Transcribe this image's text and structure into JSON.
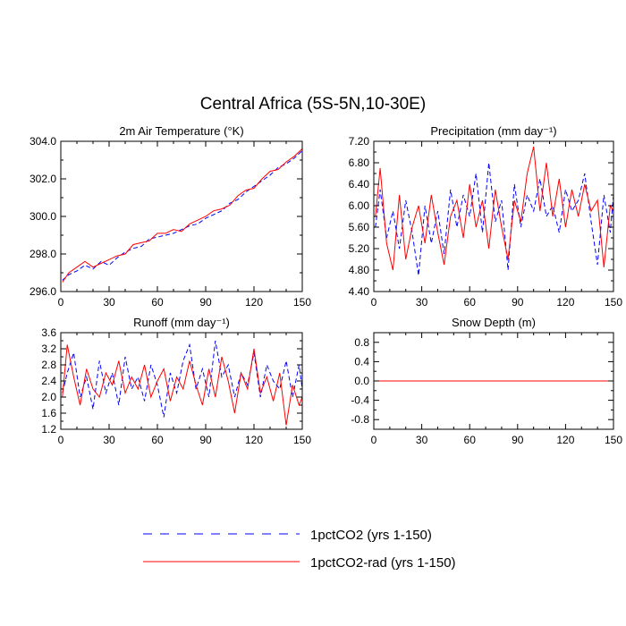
{
  "figure": {
    "title": "Central Africa (5S-5N,10-30E)"
  },
  "legend": {
    "placement": "bottom-center",
    "items": [
      {
        "label": "1pctCO2 (yrs 1-150)",
        "color": "#0000ff",
        "dash": "dashed"
      },
      {
        "label": "1pctCO2-rad (yrs 1-150)",
        "color": "#ff0000",
        "dash": "solid"
      }
    ]
  },
  "chart_data": [
    {
      "type": "line",
      "title": "2m Air Temperature (°K)",
      "xlabel": "",
      "ylabel": "",
      "xlim": [
        0,
        150
      ],
      "ylim": [
        296.0,
        304.0
      ],
      "xticks": [
        0,
        30,
        60,
        90,
        120,
        150
      ],
      "xtick_labels": [
        "0",
        "30",
        "60",
        "90",
        "120",
        "150"
      ],
      "yticks": [
        296.0,
        298.0,
        300.0,
        302.0,
        304.0
      ],
      "ytick_labels": [
        "296.0",
        "298.0",
        "300.0",
        "302.0",
        "304.0"
      ],
      "grid": false,
      "series": [
        {
          "name": "1pctCO2 (yrs 1-150)",
          "color": "#0000ff",
          "dash": "dashed",
          "x": [
            1,
            5,
            10,
            15,
            20,
            25,
            30,
            35,
            40,
            45,
            50,
            55,
            60,
            65,
            70,
            75,
            80,
            85,
            90,
            95,
            100,
            105,
            110,
            115,
            120,
            125,
            130,
            135,
            140,
            145,
            150
          ],
          "values": [
            296.6,
            296.9,
            297.1,
            297.4,
            297.2,
            297.6,
            297.4,
            297.8,
            298.1,
            298.3,
            298.4,
            298.8,
            298.9,
            299.0,
            299.1,
            299.3,
            299.5,
            299.6,
            299.9,
            300.1,
            300.3,
            300.7,
            300.9,
            301.3,
            301.6,
            301.9,
            302.2,
            302.6,
            302.8,
            303.1,
            303.5
          ]
        },
        {
          "name": "1pctCO2-rad (yrs 1-150)",
          "color": "#ff0000",
          "dash": "solid",
          "x": [
            1,
            5,
            10,
            15,
            20,
            25,
            30,
            35,
            40,
            45,
            50,
            55,
            60,
            65,
            70,
            75,
            80,
            85,
            90,
            95,
            100,
            105,
            110,
            115,
            120,
            125,
            130,
            135,
            140,
            145,
            150
          ],
          "values": [
            296.5,
            297.0,
            297.3,
            297.6,
            297.3,
            297.5,
            297.7,
            297.9,
            298.0,
            298.5,
            298.6,
            298.7,
            299.1,
            299.1,
            299.3,
            299.2,
            299.6,
            299.8,
            300.0,
            300.3,
            300.4,
            300.6,
            301.1,
            301.4,
            301.5,
            302.0,
            302.4,
            302.5,
            302.9,
            303.2,
            303.6
          ]
        }
      ]
    },
    {
      "type": "line",
      "title": "Precipitation (mm day⁻¹)",
      "xlabel": "",
      "ylabel": "",
      "xlim": [
        0,
        150
      ],
      "ylim": [
        4.4,
        7.2
      ],
      "xticks": [
        0,
        30,
        60,
        90,
        120,
        150
      ],
      "xtick_labels": [
        "0",
        "30",
        "60",
        "90",
        "120",
        "150"
      ],
      "yticks": [
        4.4,
        4.8,
        5.2,
        5.6,
        6.0,
        6.4,
        6.8,
        7.2
      ],
      "ytick_labels": [
        "4.40",
        "4.80",
        "5.20",
        "5.60",
        "6.00",
        "6.40",
        "6.80",
        "7.20"
      ],
      "grid": false,
      "series": [
        {
          "name": "1pctCO2 (yrs 1-150)",
          "color": "#0000ff",
          "dash": "dashed",
          "x": [
            1,
            4,
            8,
            12,
            16,
            20,
            24,
            28,
            32,
            36,
            40,
            44,
            48,
            52,
            56,
            60,
            64,
            68,
            72,
            76,
            80,
            84,
            88,
            92,
            96,
            100,
            104,
            108,
            112,
            116,
            120,
            124,
            128,
            132,
            136,
            140,
            144,
            148,
            150
          ],
          "values": [
            5.6,
            6.3,
            5.4,
            5.9,
            5.2,
            6.1,
            5.5,
            4.7,
            6.0,
            5.3,
            5.9,
            5.1,
            6.3,
            5.6,
            6.2,
            5.8,
            6.6,
            5.5,
            6.8,
            5.7,
            6.1,
            4.8,
            6.4,
            5.6,
            6.2,
            5.9,
            6.5,
            5.8,
            6.0,
            5.5,
            6.3,
            5.9,
            6.1,
            6.6,
            5.7,
            4.9,
            6.2,
            5.5,
            6.2
          ]
        },
        {
          "name": "1pctCO2-rad (yrs 1-150)",
          "color": "#ff0000",
          "dash": "solid",
          "x": [
            1,
            4,
            8,
            12,
            16,
            20,
            24,
            28,
            32,
            36,
            40,
            44,
            48,
            52,
            56,
            60,
            64,
            68,
            72,
            76,
            80,
            84,
            88,
            92,
            96,
            100,
            104,
            108,
            112,
            116,
            120,
            124,
            128,
            132,
            136,
            140,
            144,
            148,
            150
          ],
          "values": [
            5.8,
            6.7,
            5.3,
            4.8,
            6.2,
            5.0,
            5.6,
            6.0,
            5.3,
            6.2,
            5.5,
            4.9,
            5.8,
            6.1,
            5.4,
            6.4,
            5.6,
            6.1,
            5.2,
            6.3,
            5.6,
            5.0,
            6.1,
            5.7,
            6.6,
            7.1,
            5.9,
            6.8,
            5.8,
            6.5,
            5.6,
            6.3,
            5.8,
            6.4,
            5.9,
            6.1,
            4.85,
            6.0,
            5.9
          ]
        }
      ]
    },
    {
      "type": "line",
      "title": "Runoff (mm day⁻¹)",
      "xlabel": "",
      "ylabel": "",
      "xlim": [
        0,
        150
      ],
      "ylim": [
        1.2,
        3.6
      ],
      "xticks": [
        0,
        30,
        60,
        90,
        120,
        150
      ],
      "xtick_labels": [
        "0",
        "30",
        "60",
        "90",
        "120",
        "150"
      ],
      "yticks": [
        1.2,
        1.6,
        2.0,
        2.4,
        2.8,
        3.2,
        3.6
      ],
      "ytick_labels": [
        "1.2",
        "1.6",
        "2.0",
        "2.4",
        "2.8",
        "3.2",
        "3.6"
      ],
      "grid": false,
      "series": [
        {
          "name": "1pctCO2 (yrs 1-150)",
          "color": "#0000ff",
          "dash": "dashed",
          "x": [
            1,
            4,
            8,
            12,
            16,
            20,
            24,
            28,
            32,
            36,
            40,
            44,
            48,
            52,
            56,
            60,
            64,
            68,
            72,
            76,
            80,
            84,
            88,
            92,
            96,
            100,
            104,
            108,
            112,
            116,
            120,
            124,
            128,
            132,
            136,
            140,
            144,
            148,
            150
          ],
          "values": [
            2.1,
            2.6,
            3.1,
            2.0,
            2.5,
            1.7,
            2.9,
            2.1,
            2.6,
            1.8,
            3.0,
            2.2,
            2.5,
            1.9,
            2.8,
            2.3,
            1.5,
            2.6,
            2.1,
            2.9,
            3.3,
            2.2,
            2.7,
            2.0,
            3.4,
            2.5,
            2.8,
            2.0,
            2.6,
            2.3,
            3.1,
            2.0,
            2.8,
            2.4,
            2.2,
            2.9,
            2.0,
            2.8,
            2.2
          ]
        },
        {
          "name": "1pctCO2-rad (yrs 1-150)",
          "color": "#ff0000",
          "dash": "solid",
          "x": [
            1,
            4,
            8,
            12,
            16,
            20,
            24,
            28,
            32,
            36,
            40,
            44,
            48,
            52,
            56,
            60,
            64,
            68,
            72,
            76,
            80,
            84,
            88,
            92,
            96,
            100,
            104,
            108,
            112,
            116,
            120,
            124,
            128,
            132,
            136,
            140,
            144,
            148,
            150
          ],
          "values": [
            2.0,
            3.3,
            2.5,
            1.8,
            2.7,
            2.2,
            2.0,
            2.6,
            2.3,
            2.9,
            2.1,
            2.5,
            2.2,
            2.8,
            2.0,
            2.4,
            2.7,
            1.9,
            2.5,
            2.2,
            2.9,
            2.3,
            1.8,
            2.7,
            2.0,
            3.0,
            2.4,
            1.6,
            2.6,
            2.2,
            3.2,
            2.1,
            2.5,
            1.9,
            2.6,
            1.3,
            2.3,
            1.8,
            2.0
          ]
        }
      ]
    },
    {
      "type": "line",
      "title": "Snow Depth (m)",
      "xlabel": "",
      "ylabel": "",
      "xlim": [
        0,
        150
      ],
      "ylim": [
        -1.0,
        1.0
      ],
      "xticks": [
        0,
        30,
        60,
        90,
        120,
        150
      ],
      "xtick_labels": [
        "0",
        "30",
        "60",
        "90",
        "120",
        "150"
      ],
      "yticks": [
        -0.8,
        -0.4,
        0.0,
        0.4,
        0.8
      ],
      "ytick_labels": [
        "-0.8",
        "-0.4",
        "0.0",
        "0.4",
        "0.8"
      ],
      "grid": false,
      "series": [
        {
          "name": "1pctCO2 (yrs 1-150)",
          "color": "#0000ff",
          "dash": "dashed",
          "x": [
            0,
            150
          ],
          "values": [
            0.0,
            0.0
          ]
        },
        {
          "name": "1pctCO2-rad (yrs 1-150)",
          "color": "#ff0000",
          "dash": "solid",
          "x": [
            0,
            150
          ],
          "values": [
            0.0,
            0.0
          ]
        }
      ]
    }
  ]
}
